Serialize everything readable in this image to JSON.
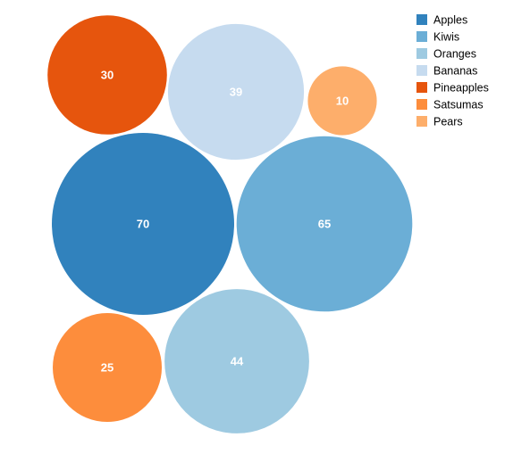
{
  "chart_data": {
    "type": "bubble",
    "title": "",
    "legend_placement": "top-right",
    "series": [
      {
        "name": "Apples",
        "value": 70,
        "color": "#3182bd"
      },
      {
        "name": "Kiwis",
        "value": 65,
        "color": "#6baed6"
      },
      {
        "name": "Oranges",
        "value": 44,
        "color": "#9ecae1"
      },
      {
        "name": "Bananas",
        "value": 39,
        "color": "#c6dbef"
      },
      {
        "name": "Pineapples",
        "value": 30,
        "color": "#e6550d"
      },
      {
        "name": "Satsumas",
        "value": 25,
        "color": "#fd8d3c"
      },
      {
        "name": "Pears",
        "value": 10,
        "color": "#fdae6b"
      }
    ]
  }
}
